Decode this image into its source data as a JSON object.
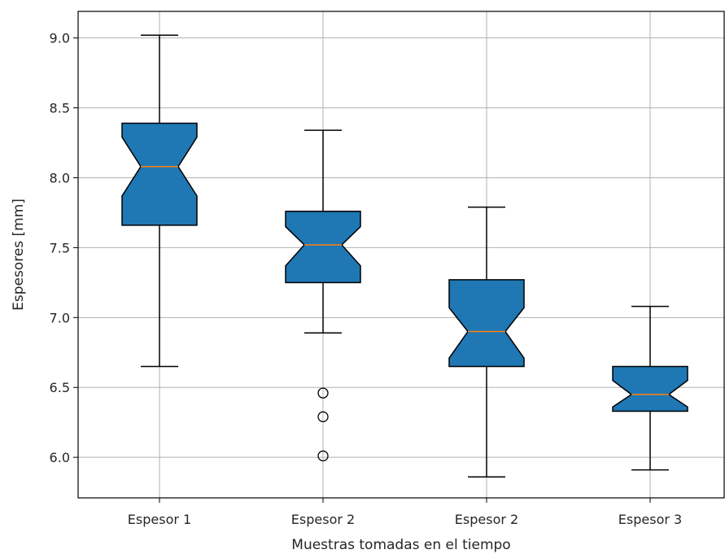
{
  "chart_data": {
    "type": "boxplot",
    "title": "",
    "xlabel": "Muestras tomadas en el tiempo",
    "ylabel": "Espesores [mm]",
    "ylim": [
      5.71,
      9.19
    ],
    "yticks": [
      6.0,
      6.5,
      7.0,
      7.5,
      8.0,
      8.5,
      9.0
    ],
    "ytick_labels": [
      "6.0",
      "6.5",
      "7.0",
      "7.5",
      "8.0",
      "8.5",
      "9.0"
    ],
    "grid": true,
    "notched": true,
    "box_color": "#1f77b4",
    "median_color": "#ff7f0e",
    "categories": [
      "Espesor 1",
      "Espesor 2",
      "Espesor 2",
      "Espesor 3"
    ],
    "boxes": [
      {
        "whisker_low": 6.65,
        "q1": 7.66,
        "median": 8.08,
        "q3": 8.39,
        "whisker_high": 9.02,
        "notch_low": 7.87,
        "notch_high": 8.29,
        "outliers": []
      },
      {
        "whisker_low": 6.89,
        "q1": 7.25,
        "median": 7.52,
        "q3": 7.76,
        "whisker_high": 8.34,
        "notch_low": 7.37,
        "notch_high": 7.65,
        "outliers": [
          6.46,
          6.29,
          6.01
        ]
      },
      {
        "whisker_low": 5.86,
        "q1": 6.65,
        "median": 6.9,
        "q3": 7.27,
        "whisker_high": 7.79,
        "notch_low": 6.71,
        "notch_high": 7.07,
        "outliers": []
      },
      {
        "whisker_low": 5.91,
        "q1": 6.33,
        "median": 6.45,
        "q3": 6.65,
        "whisker_high": 7.08,
        "notch_low": 6.36,
        "notch_high": 6.55,
        "outliers": []
      }
    ]
  }
}
